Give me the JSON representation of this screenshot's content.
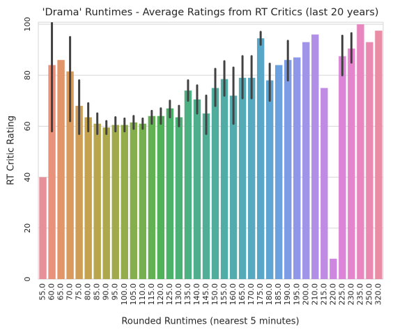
{
  "chart_data": {
    "type": "bar",
    "title": "'Drama' Runtimes - Average Ratings from RT Critics (last 20 years)",
    "x_label": "Rounded Runtimes (nearest 5 minutes)",
    "y_label": "RT Critic Rating",
    "categories": [
      "55.0",
      "60.0",
      "65.0",
      "70.0",
      "75.0",
      "80.0",
      "85.0",
      "90.0",
      "95.0",
      "100.0",
      "105.0",
      "110.0",
      "115.0",
      "120.0",
      "125.0",
      "130.0",
      "135.0",
      "140.0",
      "145.0",
      "150.0",
      "155.0",
      "160.0",
      "165.0",
      "170.0",
      "175.0",
      "180.0",
      "185.0",
      "190.0",
      "195.0",
      "200.0",
      "210.0",
      "215.0",
      "220.0",
      "225.0",
      "230.0",
      "235.0",
      "250.0",
      "320.0"
    ],
    "values": [
      40,
      84,
      86,
      81.5,
      68,
      63.5,
      61,
      59.5,
      60.5,
      60.5,
      61.5,
      61,
      64,
      64,
      67,
      63.5,
      74,
      70.5,
      65,
      75,
      78.5,
      72,
      79,
      79,
      94.5,
      78,
      84,
      86,
      87,
      93,
      96,
      75,
      8,
      87.5,
      90.5,
      100,
      93,
      97.5
    ],
    "ci_low": [
      null,
      58,
      null,
      62,
      57,
      58,
      57,
      57,
      58,
      58,
      59,
      59,
      61,
      61,
      63.5,
      60,
      70,
      65,
      57,
      68,
      72,
      61,
      71,
      71,
      92,
      70,
      null,
      78,
      null,
      null,
      null,
      null,
      null,
      80,
      85,
      null,
      null,
      null
    ],
    "ci_high": [
      null,
      108,
      null,
      95,
      78,
      69,
      65,
      62,
      63.5,
      63,
      64,
      63,
      66,
      67,
      70,
      68,
      78,
      76,
      72,
      82.5,
      85.5,
      83,
      87.5,
      87.5,
      97,
      84.5,
      null,
      93.5,
      null,
      null,
      null,
      null,
      null,
      95.5,
      96.5,
      null,
      null,
      null
    ],
    "colors": [
      "#e8909a",
      "#e8927c",
      "#e3956a",
      "#d99a5d",
      "#cf9e54",
      "#c4a24e",
      "#b8a54c",
      "#aca84b",
      "#a0aa4b",
      "#93ac4c",
      "#85ae4d",
      "#75b04f",
      "#63b152",
      "#52b25a",
      "#4bb26a",
      "#4cb177",
      "#4db082",
      "#4eaf8c",
      "#4fae95",
      "#50ad9d",
      "#51aca5",
      "#52abad",
      "#54aab5",
      "#56a9be",
      "#59a7c8",
      "#5fa5d3",
      "#6aa1de",
      "#7c9de6",
      "#8f98e8",
      "#a094e8",
      "#b18fe6",
      "#c08be3",
      "#ce87df",
      "#db84d8",
      "#e384cd",
      "#e886bf",
      "#ea89b1",
      "#eb8ca5"
    ],
    "error_color": "#424242",
    "ylim": [
      0,
      100.8
    ],
    "yticks": [
      0,
      20,
      40,
      60,
      80,
      100
    ],
    "grid": true
  }
}
